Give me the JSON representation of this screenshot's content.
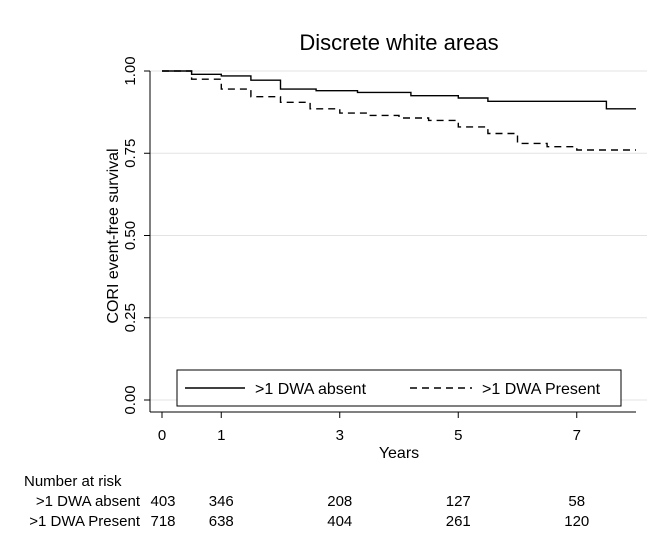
{
  "chart_data": {
    "type": "line",
    "title": "Discrete white areas",
    "xlabel": "Years",
    "ylabel": "CORI event-free survival",
    "xlim": [
      -0.2,
      8.2
    ],
    "ylim": [
      0,
      1
    ],
    "xticks": [
      0,
      1,
      3,
      5,
      7
    ],
    "yticks": [
      0,
      0.25,
      0.5,
      0.75,
      1
    ],
    "ytick_labels": [
      "0.00",
      "0.25",
      "0.50",
      "0.75",
      "1.00"
    ],
    "grid": "horizontal",
    "legend_position": "bottom",
    "series": [
      {
        "name": ">1 DWA absent",
        "style": "solid",
        "color": "#000000",
        "x": [
          0,
          0.5,
          0.5,
          1.0,
          1.0,
          1.5,
          1.5,
          2.0,
          2.0,
          2.6,
          2.6,
          3.3,
          3.3,
          4.2,
          4.2,
          5.0,
          5.0,
          5.5,
          5.5,
          7.5,
          7.5,
          8.0
        ],
        "y": [
          1.0,
          1.0,
          0.99,
          0.99,
          0.985,
          0.985,
          0.972,
          0.972,
          0.945,
          0.945,
          0.94,
          0.94,
          0.935,
          0.935,
          0.925,
          0.925,
          0.918,
          0.918,
          0.908,
          0.908,
          0.885,
          0.885
        ]
      },
      {
        "name": ">1 DWA Present",
        "style": "dashed",
        "color": "#000000",
        "x": [
          0,
          0.5,
          0.5,
          1.0,
          1.0,
          1.5,
          1.5,
          2.0,
          2.0,
          2.5,
          2.5,
          3.0,
          3.0,
          3.5,
          3.5,
          4.0,
          4.0,
          4.5,
          4.5,
          5.0,
          5.0,
          5.5,
          5.5,
          6.0,
          6.0,
          6.5,
          6.5,
          7.0,
          7.0,
          8.0
        ],
        "y": [
          1.0,
          1.0,
          0.975,
          0.975,
          0.945,
          0.945,
          0.922,
          0.922,
          0.905,
          0.905,
          0.885,
          0.885,
          0.872,
          0.872,
          0.865,
          0.865,
          0.857,
          0.857,
          0.85,
          0.85,
          0.83,
          0.83,
          0.81,
          0.81,
          0.78,
          0.78,
          0.77,
          0.77,
          0.76,
          0.76
        ]
      }
    ],
    "risk_table": {
      "title": "Number at risk",
      "times": [
        0,
        1,
        3,
        5,
        7
      ],
      "rows": [
        {
          "label": ">1 DWA absent",
          "counts": [
            "403",
            "346",
            "208",
            "127",
            "58"
          ]
        },
        {
          "label": ">1 DWA Present",
          "counts": [
            "718",
            "638",
            "404",
            "261",
            "120"
          ]
        }
      ]
    }
  }
}
